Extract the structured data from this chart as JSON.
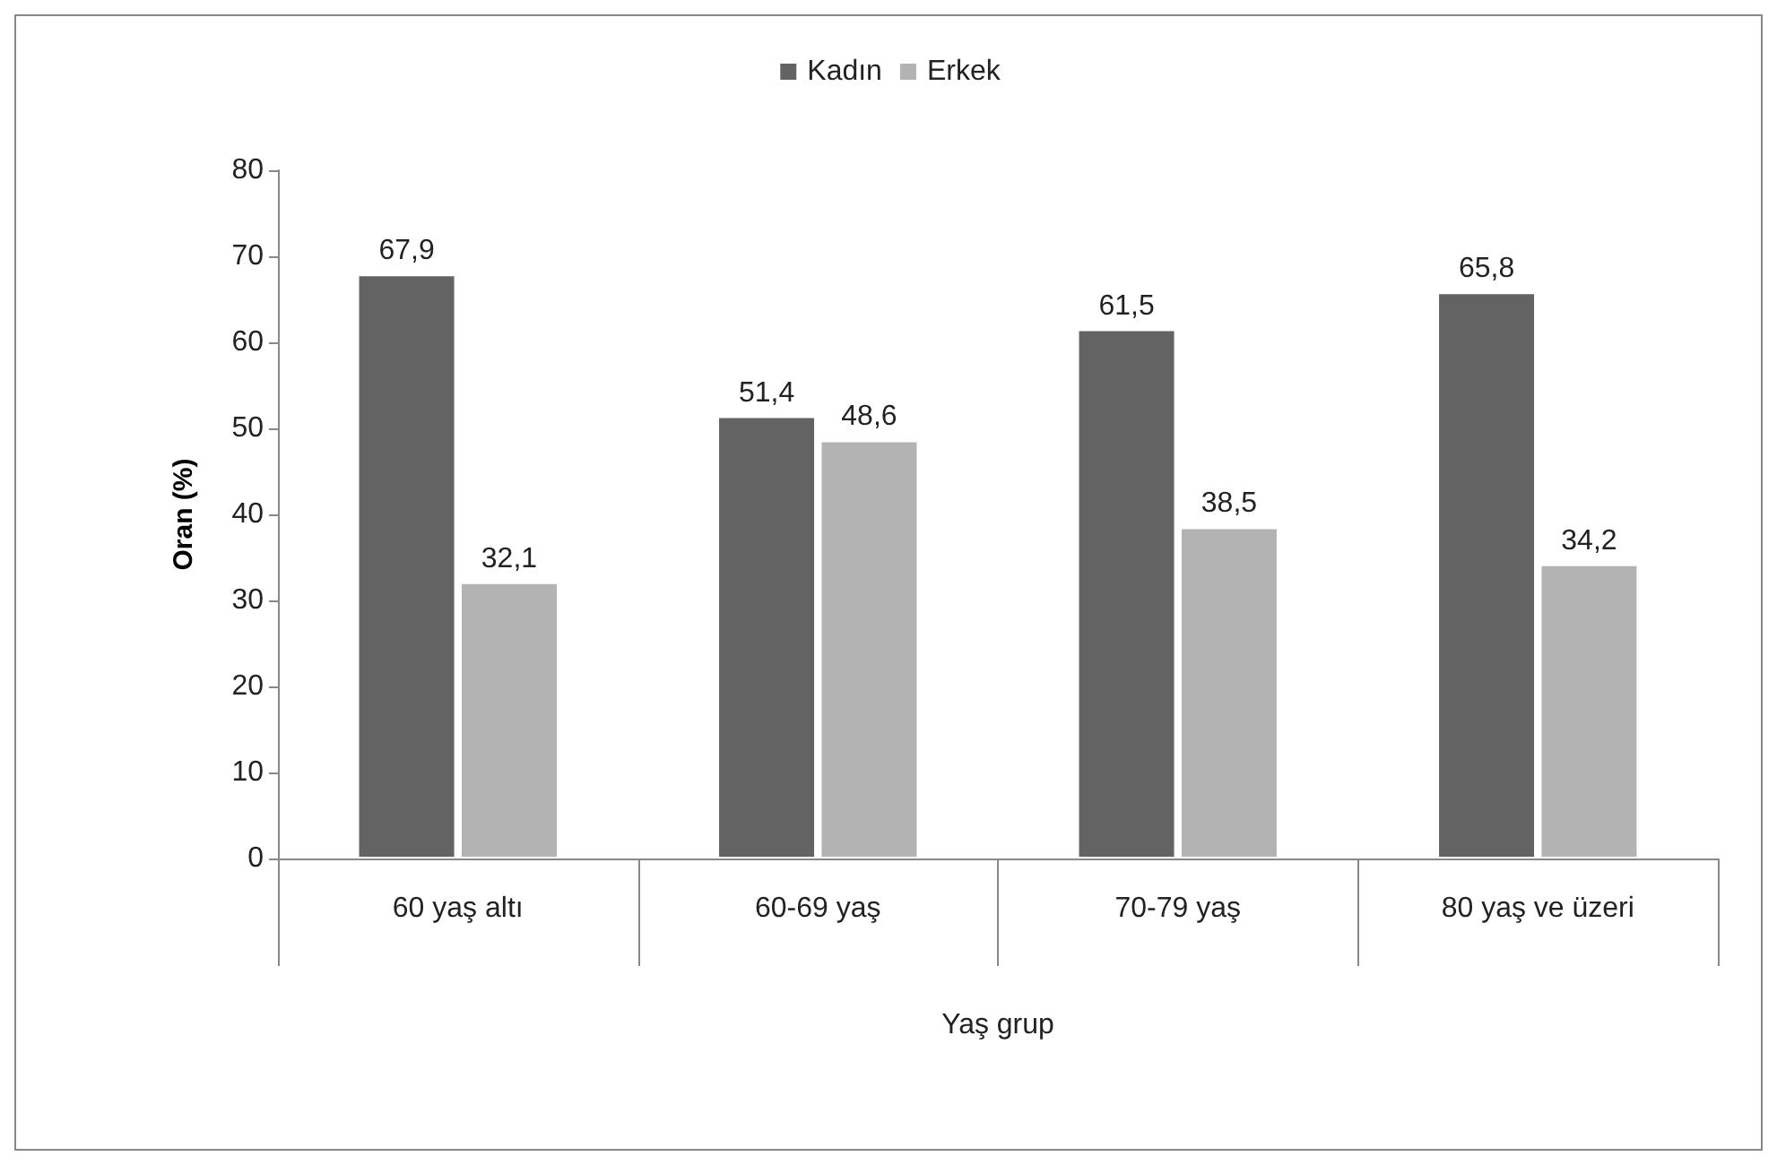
{
  "chart_data": {
    "type": "bar",
    "xlabel": "Yaş grup",
    "ylabel": "Oran (%)",
    "categories": [
      "60 yaş altı",
      "60-69 yaş",
      "70-79 yaş",
      "80 yaş ve üzeri"
    ],
    "series": [
      {
        "name": "Kadın",
        "color": "#636363",
        "values": [
          67.9,
          51.4,
          61.5,
          65.8
        ],
        "value_labels": [
          "67,9",
          "51,4",
          "61,5",
          "65,8"
        ]
      },
      {
        "name": "Erkek",
        "color": "#b3b3b3",
        "values": [
          32.1,
          48.6,
          38.5,
          34.2
        ],
        "value_labels": [
          "32,1",
          "48,6",
          "38,5",
          "34,2"
        ]
      }
    ],
    "ylim": [
      0,
      80
    ],
    "yticks": [
      0,
      10,
      20,
      30,
      40,
      50,
      60,
      70,
      80
    ],
    "grid": false,
    "legend": "top"
  }
}
